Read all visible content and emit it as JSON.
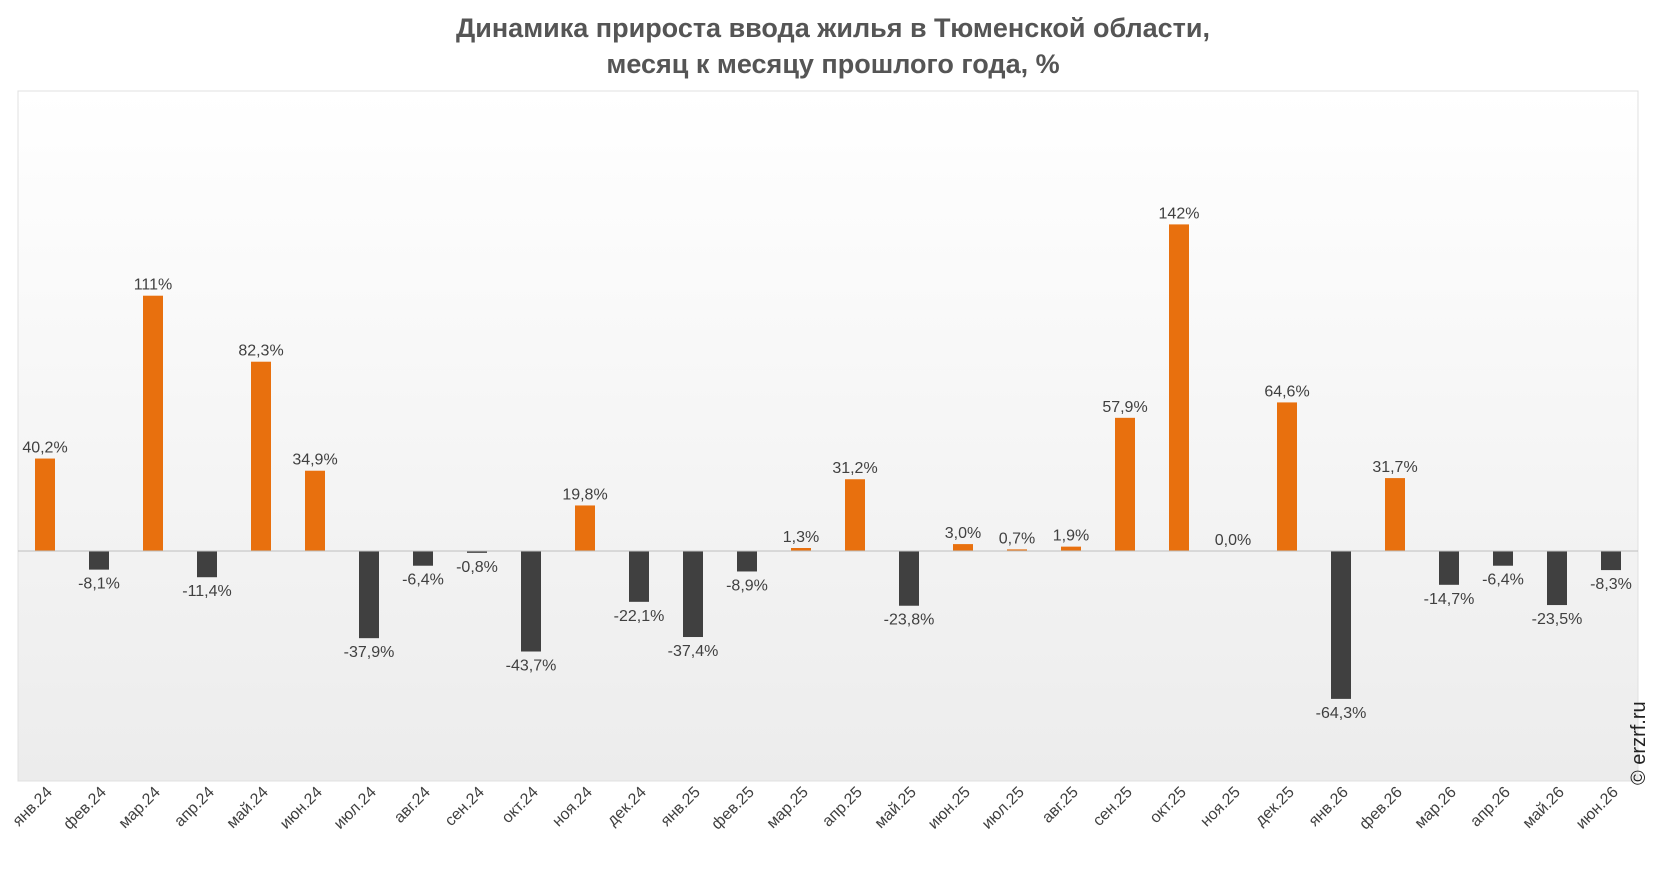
{
  "chart_data": {
    "type": "bar",
    "title": [
      "Динамика прироста ввода жилья в Тюменской области,",
      "месяц к месяцу прошлого года, %"
    ],
    "categories": [
      "янв.24",
      "фев.24",
      "мар.24",
      "апр.24",
      "май.24",
      "июн.24",
      "июл.24",
      "авг.24",
      "сен.24",
      "окт.24",
      "ноя.24",
      "дек.24",
      "янв.25",
      "фев.25",
      "мар.25",
      "апр.25",
      "май.25",
      "июн.25",
      "июл.25",
      "авг.25",
      "сен.25",
      "окт.25",
      "ноя.25",
      "дек.25",
      "янв.26",
      "фев.26",
      "мар.26",
      "апр.26",
      "май.26",
      "июн.26"
    ],
    "values": [
      40.2,
      -8.1,
      111,
      -11.4,
      82.3,
      34.9,
      -37.9,
      -6.4,
      -0.8,
      -43.7,
      19.8,
      -22.1,
      -37.4,
      -8.9,
      1.3,
      31.2,
      -23.8,
      3.0,
      0.7,
      1.9,
      57.9,
      142,
      0.0,
      64.6,
      -64.3,
      31.7,
      -14.7,
      -6.4,
      -23.5,
      -8.3
    ],
    "data_labels": [
      "40,2%",
      "-8,1%",
      "111%",
      "-11,4%",
      "82,3%",
      "34,9%",
      "-37,9%",
      "-6,4%",
      "-0,8%",
      "-43,7%",
      "19,8%",
      "-22,1%",
      "-37,4%",
      "-8,9%",
      "1,3%",
      "31,2%",
      "-23,8%",
      "3,0%",
      "0,7%",
      "1,9%",
      "57,9%",
      "142%",
      "0,0%",
      "64,6%",
      "-64,3%",
      "31,7%",
      "-14,7%",
      "-6,4%",
      "-23,5%",
      "-8,3%"
    ],
    "ylim": [
      -100,
      200
    ],
    "grid": false,
    "legend": "none",
    "colors": {
      "positive": "#E8700E",
      "negative": "#404040"
    }
  },
  "watermark": "© erzrf.ru"
}
